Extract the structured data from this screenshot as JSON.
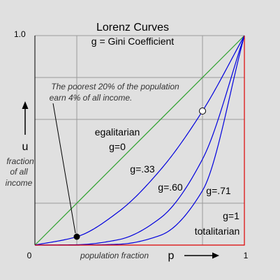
{
  "chart_data": {
    "type": "line",
    "title": "Lorenz Curves",
    "subtitle": "g = Gini Coefficient",
    "xlabel": "population fraction",
    "x_symbol": "p",
    "y_symbol": "u",
    "ylabel_lines": [
      "fraction",
      "of all",
      "income"
    ],
    "xlim": [
      0,
      1
    ],
    "ylim": [
      0,
      1
    ],
    "x_ticks": [
      {
        "value": 0,
        "label": "0"
      },
      {
        "value": 1,
        "label": "1"
      }
    ],
    "y_ticks": [
      {
        "value": 1,
        "label": "1.0"
      }
    ],
    "gridlines_x": [
      0.2,
      0.8
    ],
    "gridlines_y": [
      0.2,
      0.6,
      0.8
    ],
    "grid": true,
    "series": [
      {
        "label": "egalitarian",
        "gini_label": "g=0",
        "gini": 0,
        "color": "#2ca02c",
        "x": [
          0,
          1
        ],
        "y": [
          0,
          1
        ]
      },
      {
        "label": "",
        "gini_label": "g=.33",
        "gini": 0.33,
        "color": "#0000dd",
        "x": [
          0,
          0.2,
          0.4,
          0.6,
          0.8,
          1.0
        ],
        "y": [
          0,
          0.04,
          0.16,
          0.36,
          0.64,
          1
        ]
      },
      {
        "label": "",
        "gini_label": "g=.60",
        "gini": 0.6,
        "color": "#0000dd",
        "x": [
          0,
          0.2,
          0.4,
          0.6,
          0.8,
          1.0
        ],
        "y": [
          0,
          0.0016,
          0.026,
          0.13,
          0.41,
          1
        ]
      },
      {
        "label": "",
        "gini_label": "g=.71",
        "gini": 0.71,
        "color": "#0000dd",
        "x": [
          0,
          0.2,
          0.4,
          0.6,
          0.8,
          1.0
        ],
        "y": [
          0,
          0.0001,
          0.004,
          0.047,
          0.26,
          1
        ]
      },
      {
        "label": "totalitarian",
        "gini_label": "g=1",
        "gini": 1,
        "color": "#dd0000",
        "x": [
          0,
          1,
          1
        ],
        "y": [
          0,
          0,
          1
        ]
      }
    ],
    "points": [
      {
        "x": 0.2,
        "y": 0.04,
        "style": "filled"
      },
      {
        "x": 0.8,
        "y": 0.64,
        "style": "open"
      }
    ],
    "annotation": {
      "lines": [
        "The poorest 20% of the population",
        "earn 4% of all income."
      ],
      "points_to": {
        "x": 0.2,
        "y": 0.04
      }
    },
    "colors": {
      "background": "#e0e0e0",
      "grid": "#9a9a9a",
      "axis": "#000000",
      "equality": "#2ca02c",
      "curves": "#0000dd",
      "totalitarian": "#dd0000"
    }
  }
}
